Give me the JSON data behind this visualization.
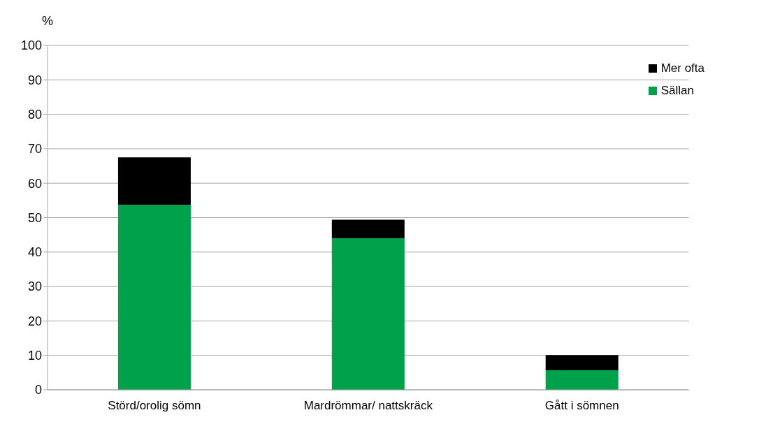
{
  "chart_data": {
    "type": "bar",
    "ylabel": "%",
    "categories": [
      "Störd/orolig sömn",
      "Mardrömmar/ nattskräck",
      "Gått i sömnen"
    ],
    "stacked": true,
    "series": [
      {
        "name": "Sällan",
        "color": "#00a14b",
        "values": [
          53.7,
          44.0,
          5.7
        ]
      },
      {
        "name": "Mer ofta",
        "color": "#000000",
        "values": [
          13.8,
          5.4,
          4.4
        ]
      }
    ],
    "ylim": [
      0,
      100
    ],
    "yticks": [
      0,
      10,
      20,
      30,
      40,
      50,
      60,
      70,
      80,
      90,
      100
    ],
    "grid": "y",
    "legend": "top right"
  }
}
